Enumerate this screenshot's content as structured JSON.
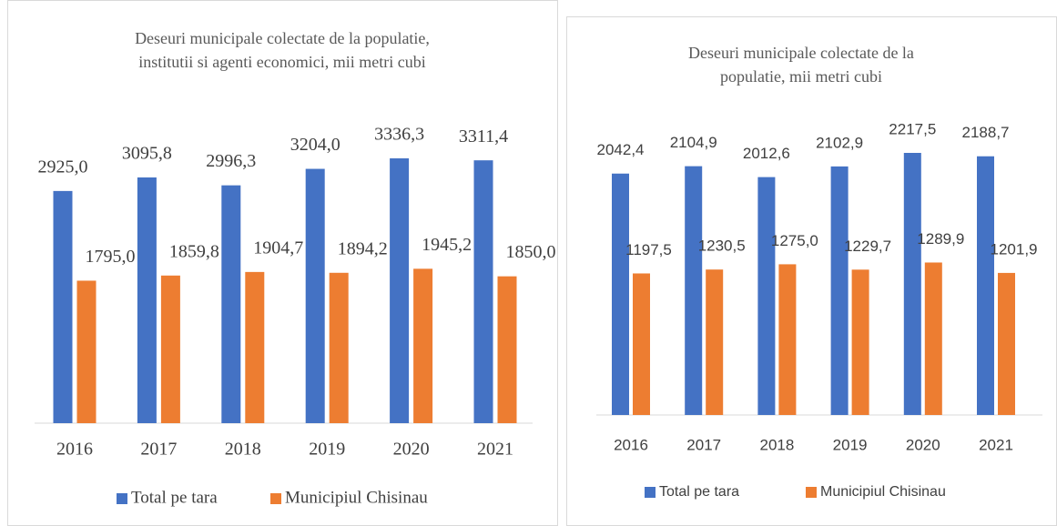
{
  "chart_data": [
    {
      "type": "bar",
      "title": "Deseuri municipale colectate de la populatie,",
      "subtitle": "institutii si agenti economici, mii metri cubi",
      "categories": [
        "2016",
        "2017",
        "2018",
        "2019",
        "2020",
        "2021"
      ],
      "series": [
        {
          "name": "Total pe tara",
          "color": "#4472c4",
          "values": [
            2925.0,
            3095.8,
            2996.3,
            3204.0,
            3336.3,
            3311.4
          ],
          "value_labels": [
            "2925,0",
            "3095,8",
            "2996,3",
            "3204,0",
            "3336,3",
            "3311,4"
          ]
        },
        {
          "name": "Municipiul Chisinau",
          "color": "#ed7d31",
          "values": [
            1795.0,
            1859.8,
            1904.7,
            1894.2,
            1945.2,
            1850.0
          ],
          "value_labels": [
            "1795,0",
            "1859,8",
            "1904,7",
            "1894,2",
            "1945,2",
            "1850,0"
          ]
        }
      ],
      "legend": "bottom"
    },
    {
      "type": "bar",
      "title": "Deseuri municipale colectate de la",
      "subtitle": "populatie, mii metri cubi",
      "categories": [
        "2016",
        "2017",
        "2018",
        "2019",
        "2020",
        "2021"
      ],
      "series": [
        {
          "name": "Total pe tara",
          "color": "#4472c4",
          "values": [
            2042.4,
            2104.9,
            2012.6,
            2102.9,
            2217.5,
            2188.7
          ],
          "value_labels": [
            "2042,4",
            "2104,9",
            "2012,6",
            "2102,9",
            "2217,5",
            "2188,7"
          ]
        },
        {
          "name": "Municipiul Chisinau",
          "color": "#ed7d31",
          "values": [
            1197.5,
            1230.5,
            1275.0,
            1229.7,
            1289.9,
            1201.9
          ],
          "value_labels": [
            "1197,5",
            "1230,5",
            "1275,0",
            "1229,7",
            "1289,9",
            "1201,9"
          ]
        }
      ],
      "legend": "bottom"
    }
  ]
}
